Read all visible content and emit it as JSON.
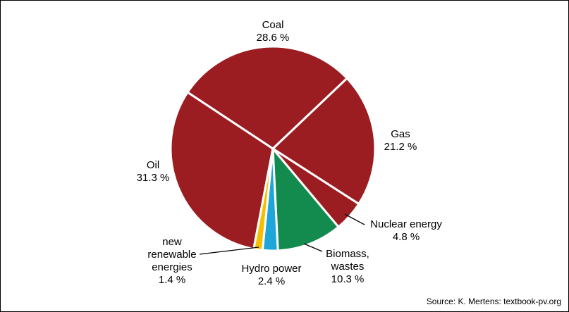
{
  "chart_data": {
    "type": "pie",
    "categories": [
      "Coal",
      "Gas",
      "Nuclear energy",
      "Biomass,\nwastes",
      "Hydro power",
      "new\nrenewable\nenergies",
      "Oil"
    ],
    "values": [
      28.6,
      21.2,
      4.8,
      10.3,
      2.4,
      1.4,
      31.3
    ],
    "value_labels": [
      "28.6 %",
      "21.2 %",
      "4.8 %",
      "10.3 %",
      "2.4 %",
      "1.4 %",
      "31.3 %"
    ],
    "colors": [
      "#9b1d22",
      "#9b1d22",
      "#9b1d22",
      "#138a4e",
      "#1ea6d8",
      "#f5c000",
      "#9b1d22"
    ],
    "source": "Source: K. Mertens: textbook-pv.org"
  }
}
